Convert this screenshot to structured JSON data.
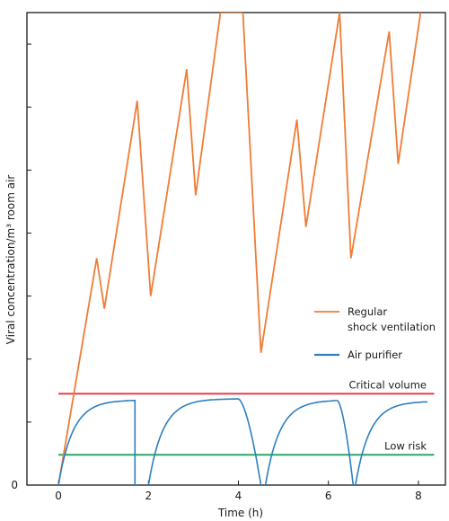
{
  "chart_data": {
    "type": "line",
    "title": "",
    "xlabel": "Time (h)",
    "ylabel": "Viral concentration/m³ room air",
    "xlim": [
      -0.7,
      8.6
    ],
    "ylim": [
      0,
      7.5
    ],
    "grid": false,
    "legend_position": "right",
    "x_ticks": [
      "0",
      "2",
      "4",
      "6",
      "8"
    ],
    "y_tick_labels": [
      {
        "value": 0,
        "label": "0"
      }
    ],
    "y_minor_ticks": [
      1,
      2,
      3,
      4,
      5,
      6,
      7
    ],
    "series": [
      {
        "name": "Regular shock ventilation",
        "color": "#f07c35",
        "points": [
          [
            0,
            0
          ],
          [
            0.85,
            3.6
          ],
          [
            1.02,
            2.8
          ],
          [
            1.75,
            6.1
          ],
          [
            2.05,
            3.0
          ],
          [
            2.85,
            6.6
          ],
          [
            3.05,
            4.6
          ],
          [
            3.6,
            7.5
          ],
          [
            4.1,
            7.5
          ],
          [
            4.5,
            2.1
          ],
          [
            5.3,
            5.8
          ],
          [
            5.5,
            4.1
          ],
          [
            6.25,
            7.5
          ],
          [
            6.5,
            3.6
          ],
          [
            7.35,
            7.2
          ],
          [
            7.55,
            5.1
          ],
          [
            8.05,
            7.5
          ]
        ]
      },
      {
        "name": "Air purifier",
        "color": "#2f7fbf",
        "cycles": [
          {
            "start": 0.0,
            "end": 1.7,
            "level": 1.35
          },
          {
            "start": 2.0,
            "end": 4.0,
            "level": 1.37
          },
          {
            "start": 4.6,
            "end": 6.2,
            "level": 1.35
          },
          {
            "start": 6.6,
            "end": 8.2,
            "level": 1.33
          }
        ],
        "drops": [
          [
            1.7,
            1.75,
            "vertical"
          ],
          [
            4.0,
            4.5,
            "curve"
          ],
          [
            6.2,
            6.55,
            "curve"
          ]
        ]
      }
    ],
    "reference_lines": [
      {
        "name": "Critical volume",
        "value": 1.45,
        "color": "#e8333a"
      },
      {
        "name": "Low risk",
        "value": 0.48,
        "color": "#1aa35c"
      }
    ]
  }
}
